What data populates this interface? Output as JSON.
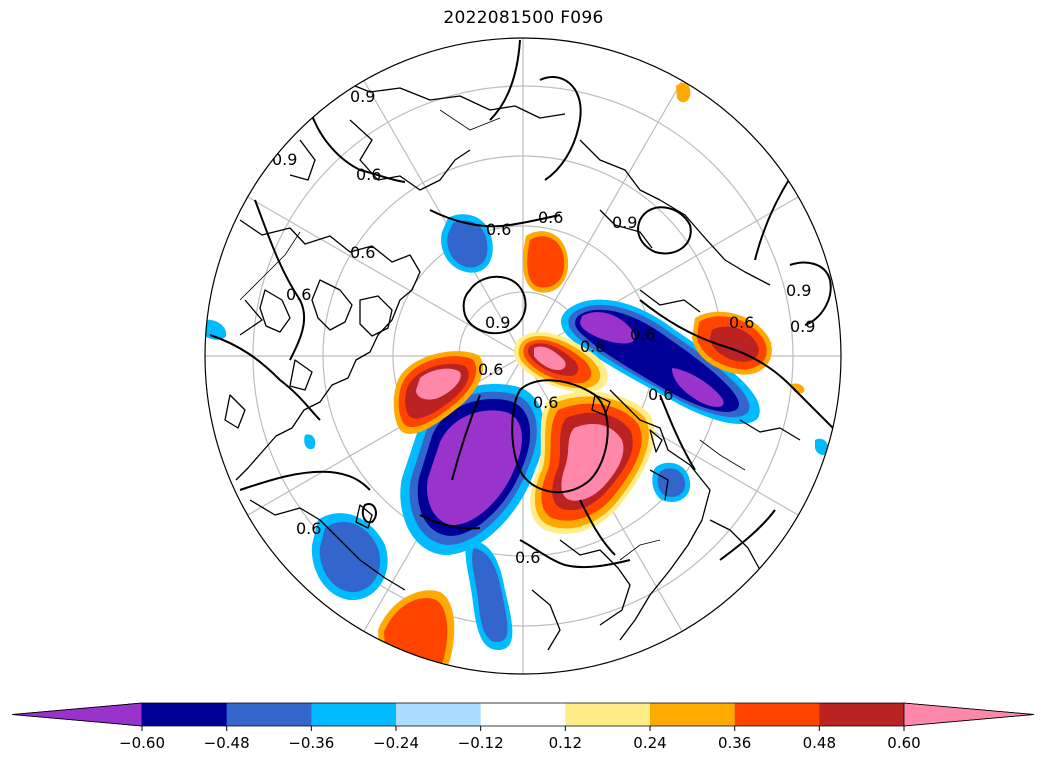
{
  "title": "2022081500 F096",
  "colorbar": {
    "colors": [
      "#9933cc",
      "#000099",
      "#3366cc",
      "#00bbff",
      "#aaddff",
      "#ffffff",
      "#ffee88",
      "#ffaa00",
      "#ff4400",
      "#bb2222",
      "#ff88aa"
    ],
    "tick_labels": [
      "−0.60",
      "−0.48",
      "−0.36",
      "−0.24",
      "−0.12",
      "0.12",
      "0.24",
      "0.36",
      "0.48",
      "0.60"
    ],
    "extend": "both"
  },
  "contour_labels": [
    "0.9",
    "0.6",
    "0.9",
    "0.6",
    "0.6",
    "0.6",
    "0.6",
    "0.9",
    "0.6",
    "0.6",
    "0.9",
    "0.9",
    "0.6",
    "0.6",
    "0.9",
    "0.6",
    "0.6",
    "0.6",
    "0.6"
  ]
}
